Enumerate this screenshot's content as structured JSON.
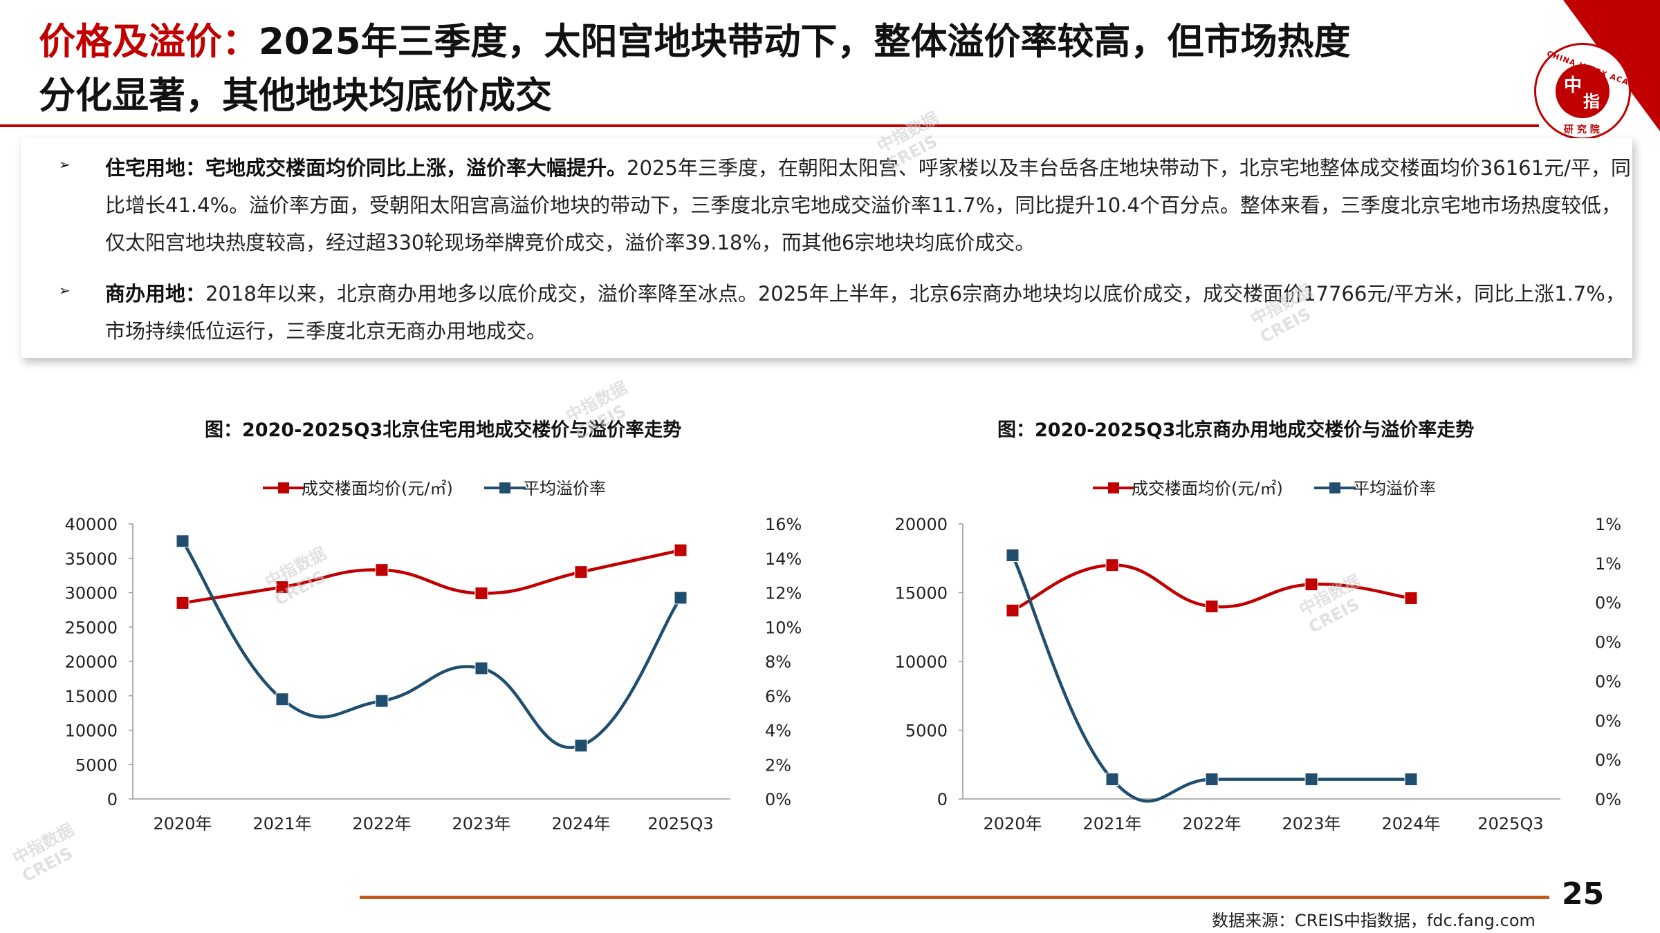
{
  "title": {
    "highlight": "价格及溢价：",
    "line1_rest": "2025年三季度，太阳宫地块带动下，整体溢价率较高，但市场热度",
    "line2": "分化显著，其他地块均底价成交"
  },
  "logo": {
    "char1": "中",
    "char2": "指",
    "ring_text": "CHINA INDEX ACADEMY",
    "sub": "研 究 院"
  },
  "bullets": {
    "symbol": "➢",
    "residential": {
      "label": "住宅用地：宅地成交楼面均价同比上涨，溢价率大幅提升。",
      "text": "2025年三季度，在朝阳太阳宫、呼家楼以及丰台岳各庄地块带动下，北京宅地整体成交楼面均价36161元/平，同比增长41.4%。溢价率方面，受朝阳太阳宫高溢价地块的带动下，三季度北京宅地成交溢价率11.7%，同比提升10.4个百分点。整体来看，三季度北京宅地市场热度较低，仅太阳宫地块热度较高，经过超330轮现场举牌竞价成交，溢价率39.18%，而其他6宗地块均底价成交。"
    },
    "commercial": {
      "label": "商办用地：",
      "text": "2018年以来，北京商办用地多以底价成交，溢价率降至冰点。2025年上半年，北京6宗商办地块均以底价成交，成交楼面价17766元/平方米，同比上涨1.7%，市场持续低位运行，三季度北京无商办用地成交。"
    }
  },
  "chart_data": [
    {
      "type": "line",
      "title": "图：2020-2025Q3北京住宅用地成交楼价与溢价率走势",
      "categories": [
        "2020年",
        "2021年",
        "2022年",
        "2023年",
        "2024年",
        "2025Q3"
      ],
      "series": [
        {
          "name": "成交楼面均价(元/㎡)",
          "axis": "left",
          "color": "#c00000",
          "values": [
            28500,
            30800,
            33300,
            29900,
            33000,
            36161
          ]
        },
        {
          "name": "平均溢价率",
          "axis": "right",
          "color": "#1f4e6e",
          "values": [
            15.0,
            5.8,
            5.7,
            7.6,
            3.1,
            11.7
          ]
        }
      ],
      "y_left": {
        "min": 0,
        "max": 40000,
        "ticks": [
          "0",
          "5000",
          "10000",
          "15000",
          "20000",
          "25000",
          "30000",
          "35000",
          "40000"
        ]
      },
      "y_right": {
        "min": 0,
        "max": 16,
        "ticks": [
          "0%",
          "2%",
          "4%",
          "6%",
          "8%",
          "10%",
          "12%",
          "14%",
          "16%"
        ]
      },
      "legend": "top-center"
    },
    {
      "type": "line",
      "title": "图：2020-2025Q3北京商办用地成交楼价与溢价率走势",
      "categories": [
        "2020年",
        "2021年",
        "2022年",
        "2023年",
        "2024年",
        "2025Q3"
      ],
      "series": [
        {
          "name": "成交楼面均价(元/㎡)",
          "axis": "left",
          "color": "#c00000",
          "values": [
            13700,
            17000,
            14000,
            15600,
            14600,
            null
          ]
        },
        {
          "name": "平均溢价率",
          "axis": "right",
          "color": "#1f4e6e",
          "values": [
            0.62,
            0.05,
            0.05,
            0.05,
            0.05,
            null
          ]
        }
      ],
      "y_left": {
        "min": 0,
        "max": 20000,
        "ticks": [
          "0",
          "5000",
          "10000",
          "15000",
          "20000"
        ]
      },
      "y_right": {
        "min": 0,
        "max": 0.7,
        "ticks": [
          "0%",
          "0%",
          "0%",
          "0%",
          "0%",
          "0%",
          "1%",
          "1%"
        ]
      },
      "legend": "top-center"
    }
  ],
  "footer": {
    "page": "25",
    "source": "数据来源：CREIS中指数据，fdc.fang.com"
  },
  "watermark": {
    "line1": "中指数据",
    "line2": "CREIS"
  }
}
